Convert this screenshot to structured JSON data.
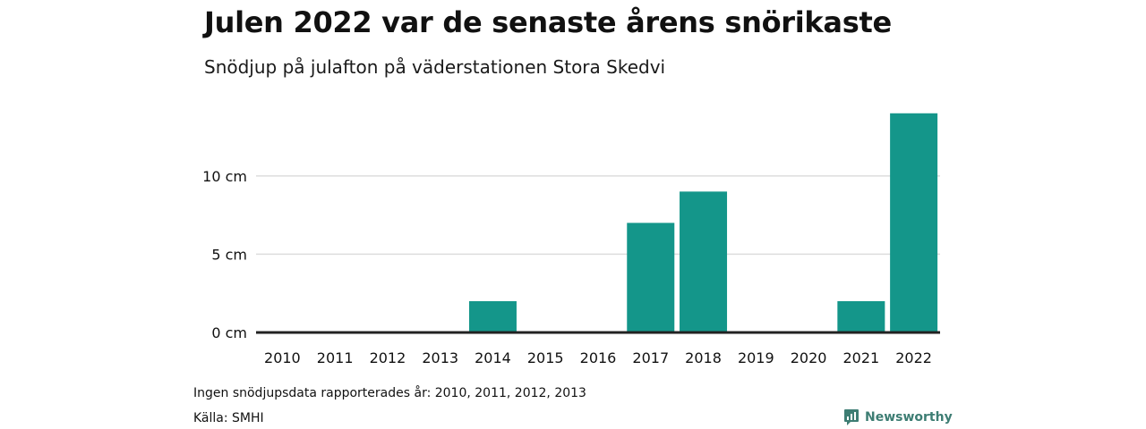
{
  "header": {
    "title": "Julen 2022 var de senaste årens snörikaste",
    "subtitle": "Snödjup på julafton på väderstationen Stora Skedvi"
  },
  "chart_data": {
    "type": "bar",
    "title": "Julen 2022 var de senaste årens snörikaste",
    "subtitle": "Snödjup på julafton på väderstationen Stora Skedvi",
    "xlabel": "",
    "ylabel": "",
    "categories": [
      "2010",
      "2011",
      "2012",
      "2013",
      "2014",
      "2015",
      "2016",
      "2017",
      "2018",
      "2019",
      "2020",
      "2021",
      "2022"
    ],
    "values": [
      null,
      null,
      null,
      null,
      2,
      0,
      0,
      7,
      9,
      0,
      0,
      2,
      14
    ],
    "y_ticks": [
      0,
      5,
      10
    ],
    "y_tick_labels": [
      "0 cm",
      "5 cm",
      "10 cm"
    ],
    "ylim": [
      0,
      14.5
    ],
    "grid": true,
    "bar_color": "#14968a",
    "gridline_color": "#dddddd",
    "baseline_color": "#222222"
  },
  "footer": {
    "note": "Ingen snödjupsdata rapporterades år: 2010, 2011, 2012, 2013",
    "source": "Källa: SMHI",
    "brand": "Newsworthy",
    "brand_icon": "newsworthy-logo-icon",
    "brand_color": "#3d7d73"
  }
}
